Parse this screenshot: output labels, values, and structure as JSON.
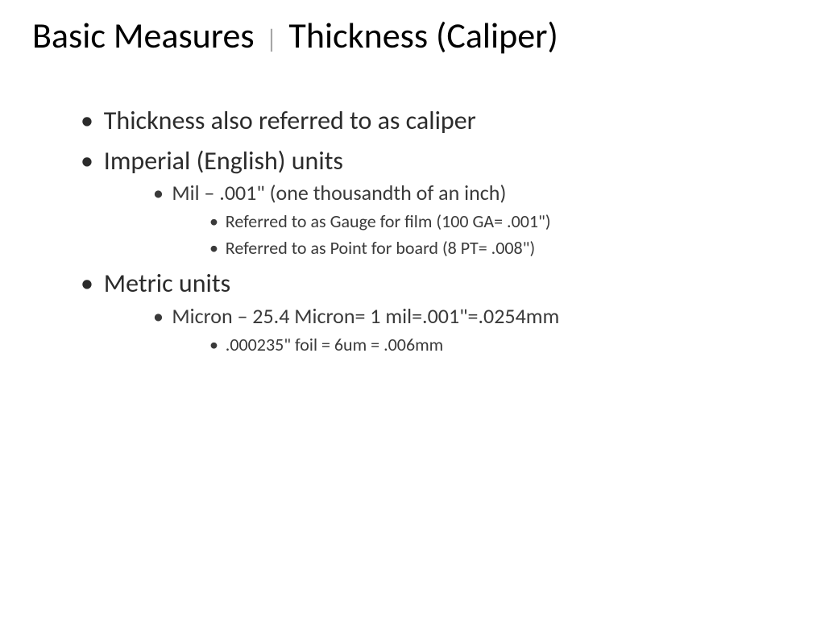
{
  "title": {
    "main": "Basic Measures",
    "separator": "|",
    "sub": "Thickness (Caliper)",
    "main_color": "#1f77c9",
    "sub_color": "#a6a6a6",
    "fontsize": 44
  },
  "bullets": {
    "b1": "Thickness also referred to as caliper",
    "b2": "Imperial (English) units",
    "b2a": "Mil – .001\" (one thousandth of an inch)",
    "b2a1": "Referred to as Gauge for film (100 GA= .001\")",
    "b2a2": "Referred to as Point for board (8 PT= .008\")",
    "b3": "Metric units",
    "b3a": "Micron – 25.4 Micron= 1 mil=.001\"=.0254mm",
    "b3a1": ".000235\" foil = 6um = .006mm"
  },
  "style": {
    "background_color": "#ffffff",
    "body_text_color": "#2b2b2b",
    "font_family": "Calibri",
    "lvl1_fontsize": 32,
    "lvl2_fontsize": 26,
    "lvl3_fontsize": 22
  }
}
